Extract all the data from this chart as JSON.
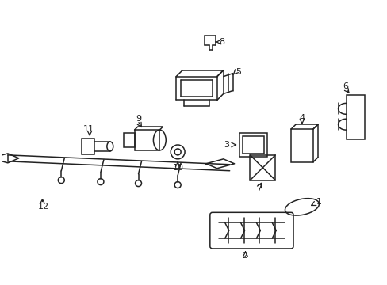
{
  "bg_color": "#ffffff",
  "line_color": "#222222",
  "figsize": [
    4.89,
    3.6
  ],
  "dpi": 100
}
